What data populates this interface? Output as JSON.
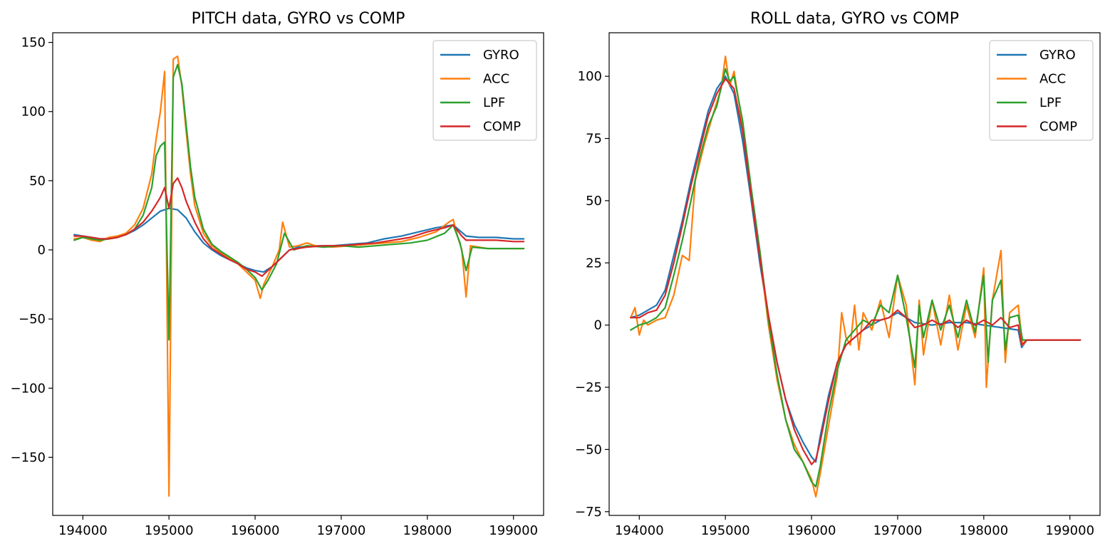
{
  "chart_data": [
    {
      "type": "line",
      "title": "PITCH data, GYRO vs COMP",
      "xlabel": "",
      "ylabel": "",
      "xlim": [
        193650,
        199350
      ],
      "ylim": [
        -192,
        157
      ],
      "xticks": [
        194000,
        195000,
        196000,
        197000,
        198000,
        199000
      ],
      "yticks": [
        150,
        100,
        50,
        0,
        -50,
        -100,
        -150
      ],
      "grid": false,
      "legend_position": "top-right",
      "series": [
        {
          "name": "GYRO",
          "color": "#1f77b4",
          "x": [
            193900,
            194000,
            194100,
            194200,
            194300,
            194400,
            194500,
            194600,
            194700,
            194800,
            194900,
            195000,
            195100,
            195200,
            195300,
            195400,
            195500,
            195600,
            195700,
            195800,
            195900,
            196000,
            196100,
            196200,
            196300,
            196400,
            196500,
            196700,
            196900,
            197100,
            197300,
            197500,
            197700,
            197900,
            198100,
            198300,
            198450,
            198600,
            198800,
            199000,
            199120
          ],
          "y": [
            11,
            10,
            9,
            8,
            8,
            9,
            11,
            14,
            18,
            23,
            28,
            30,
            29,
            23,
            13,
            5,
            0,
            -4,
            -7,
            -10,
            -13,
            -15,
            -16,
            -12,
            -6,
            0,
            2,
            3,
            3,
            4,
            5,
            8,
            10,
            13,
            16,
            18,
            10,
            9,
            9,
            8,
            8
          ]
        },
        {
          "name": "ACC",
          "color": "#ff7f0e",
          "x": [
            193900,
            194000,
            194100,
            194200,
            194300,
            194400,
            194500,
            194600,
            194700,
            194800,
            194850,
            194900,
            194950,
            195000,
            195050,
            195100,
            195150,
            195200,
            195250,
            195300,
            195400,
            195500,
            195600,
            195700,
            195800,
            195900,
            196000,
            196060,
            196100,
            196200,
            196280,
            196320,
            196400,
            196500,
            196600,
            196700,
            196900,
            197100,
            197300,
            197500,
            197700,
            197900,
            198100,
            198250,
            198300,
            198350,
            198400,
            198450,
            198500,
            198700,
            198900,
            199120
          ],
          "y": [
            8,
            9,
            7,
            6,
            9,
            10,
            12,
            18,
            30,
            55,
            80,
            100,
            129,
            -178,
            138,
            140,
            118,
            85,
            55,
            32,
            12,
            3,
            -2,
            -6,
            -10,
            -16,
            -22,
            -35,
            -25,
            -12,
            0,
            20,
            2,
            3,
            5,
            3,
            2,
            3,
            4,
            5,
            6,
            9,
            13,
            20,
            22,
            10,
            0,
            -34,
            3,
            1,
            1,
            1
          ]
        },
        {
          "name": "LPF",
          "color": "#2ca02c",
          "x": [
            193900,
            194000,
            194100,
            194200,
            194300,
            194400,
            194500,
            194600,
            194700,
            194800,
            194850,
            194900,
            194950,
            195000,
            195050,
            195100,
            195150,
            195200,
            195250,
            195300,
            195400,
            195500,
            195600,
            195700,
            195800,
            195900,
            196000,
            196080,
            196150,
            196250,
            196340,
            196450,
            196600,
            196800,
            197000,
            197200,
            197400,
            197600,
            197800,
            198000,
            198200,
            198300,
            198380,
            198450,
            198520,
            198700,
            198900,
            199120
          ],
          "y": [
            7,
            9,
            8,
            7,
            8,
            9,
            11,
            15,
            25,
            45,
            68,
            75,
            78,
            -65,
            125,
            134,
            120,
            90,
            60,
            38,
            15,
            4,
            -1,
            -5,
            -9,
            -14,
            -20,
            -29,
            -22,
            -10,
            12,
            0,
            3,
            2,
            3,
            2,
            3,
            4,
            5,
            7,
            12,
            18,
            5,
            -15,
            2,
            1,
            1,
            1
          ]
        },
        {
          "name": "COMP",
          "color": "#d62728",
          "x": [
            193900,
            194000,
            194100,
            194200,
            194300,
            194400,
            194500,
            194600,
            194700,
            194800,
            194850,
            194900,
            194950,
            195000,
            195050,
            195100,
            195150,
            195200,
            195300,
            195400,
            195500,
            195600,
            195700,
            195800,
            195900,
            196000,
            196080,
            196200,
            196300,
            196400,
            196600,
            196800,
            197000,
            197200,
            197400,
            197600,
            197800,
            198000,
            198200,
            198300,
            198400,
            198450,
            198600,
            198800,
            199000,
            199120
          ],
          "y": [
            10,
            10,
            9,
            8,
            8,
            9,
            11,
            15,
            20,
            28,
            33,
            38,
            45,
            30,
            48,
            52,
            45,
            35,
            20,
            8,
            1,
            -3,
            -7,
            -10,
            -14,
            -16,
            -19,
            -12,
            -6,
            0,
            2,
            3,
            3,
            4,
            5,
            7,
            9,
            13,
            16,
            18,
            10,
            7,
            7,
            7,
            6,
            6
          ]
        }
      ]
    },
    {
      "type": "line",
      "title": "ROLL data, GYRO vs COMP",
      "xlabel": "",
      "ylabel": "",
      "xlim": [
        193650,
        199350
      ],
      "ylim": [
        -76.5,
        117.5
      ],
      "xticks": [
        194000,
        195000,
        196000,
        197000,
        198000,
        199000
      ],
      "yticks": [
        100,
        75,
        50,
        25,
        0,
        -25,
        -50,
        -75
      ],
      "grid": false,
      "legend_position": "top-right",
      "series": [
        {
          "name": "GYRO",
          "color": "#1f77b4",
          "x": [
            193900,
            194000,
            194100,
            194200,
            194300,
            194400,
            194500,
            194600,
            194700,
            194800,
            194900,
            195000,
            195100,
            195200,
            195300,
            195400,
            195500,
            195600,
            195700,
            195800,
            195900,
            196000,
            196050,
            196100,
            196200,
            196300,
            196400,
            196500,
            196600,
            196700,
            196800,
            196900,
            197000,
            197200,
            197400,
            197600,
            197800,
            198000,
            198200,
            198400,
            198440,
            198500,
            198700,
            198900,
            199120
          ],
          "y": [
            3,
            4,
            6,
            8,
            14,
            28,
            42,
            58,
            72,
            86,
            95,
            100,
            93,
            74,
            50,
            25,
            3,
            -15,
            -30,
            -40,
            -47,
            -53,
            -55,
            -45,
            -28,
            -15,
            -8,
            -5,
            -2,
            0,
            2,
            3,
            5,
            1,
            0,
            1,
            1,
            0,
            -1,
            -2,
            -9,
            -6,
            -6,
            -6,
            -6
          ]
        },
        {
          "name": "ACC",
          "color": "#ff7f0e",
          "x": [
            193900,
            193950,
            194000,
            194050,
            194100,
            194200,
            194300,
            194400,
            194500,
            194580,
            194650,
            194750,
            194850,
            194950,
            195000,
            195050,
            195100,
            195200,
            195300,
            195400,
            195500,
            195600,
            195700,
            195800,
            195900,
            196000,
            196050,
            196100,
            196200,
            196300,
            196350,
            196400,
            196450,
            196500,
            196550,
            196600,
            196700,
            196800,
            196900,
            197000,
            197100,
            197200,
            197250,
            197300,
            197400,
            197500,
            197600,
            197700,
            197800,
            197900,
            198000,
            198030,
            198100,
            198200,
            198250,
            198300,
            198400,
            198450,
            198500,
            198700,
            198900,
            199120
          ],
          "y": [
            3,
            7,
            -4,
            2,
            0,
            2,
            3,
            12,
            28,
            26,
            58,
            72,
            84,
            95,
            108,
            96,
            102,
            80,
            52,
            28,
            0,
            -22,
            -38,
            -48,
            -55,
            -62,
            -69,
            -60,
            -40,
            -20,
            5,
            -5,
            -8,
            8,
            -10,
            5,
            -2,
            10,
            -5,
            20,
            8,
            -24,
            10,
            -12,
            10,
            -8,
            12,
            -10,
            8,
            -5,
            23,
            -25,
            10,
            30,
            -15,
            5,
            8,
            -8,
            -6,
            -6,
            -6,
            -6
          ]
        },
        {
          "name": "LPF",
          "color": "#2ca02c",
          "x": [
            193900,
            194000,
            194100,
            194200,
            194300,
            194400,
            194500,
            194600,
            194700,
            194800,
            194900,
            195000,
            195050,
            195100,
            195200,
            195300,
            195400,
            195500,
            195600,
            195700,
            195800,
            195900,
            196000,
            196050,
            196100,
            196200,
            196300,
            196400,
            196500,
            196600,
            196700,
            196800,
            196900,
            197000,
            197100,
            197200,
            197250,
            197300,
            197400,
            197500,
            197600,
            197700,
            197800,
            197900,
            198000,
            198050,
            198100,
            198200,
            198250,
            198300,
            198400,
            198450,
            198500,
            198700,
            198900,
            199120
          ],
          "y": [
            -2,
            0,
            1,
            3,
            7,
            20,
            34,
            50,
            67,
            80,
            88,
            103,
            98,
            100,
            82,
            55,
            30,
            2,
            -20,
            -38,
            -50,
            -55,
            -63,
            -65,
            -57,
            -35,
            -18,
            -6,
            -2,
            2,
            0,
            8,
            5,
            20,
            3,
            -17,
            8,
            -5,
            10,
            -2,
            8,
            -5,
            10,
            -3,
            20,
            -15,
            10,
            18,
            -10,
            3,
            4,
            -6,
            -6,
            -6,
            -6,
            -6
          ]
        },
        {
          "name": "COMP",
          "color": "#d62728",
          "x": [
            193900,
            194000,
            194100,
            194200,
            194300,
            194400,
            194500,
            194600,
            194700,
            194800,
            194900,
            195000,
            195100,
            195200,
            195300,
            195400,
            195500,
            195600,
            195700,
            195800,
            195900,
            196000,
            196050,
            196100,
            196200,
            196300,
            196400,
            196500,
            196600,
            196700,
            196800,
            196900,
            197000,
            197100,
            197200,
            197300,
            197400,
            197500,
            197600,
            197700,
            197800,
            197900,
            198000,
            198100,
            198200,
            198300,
            198400,
            198440,
            198500,
            198700,
            198900,
            199120
          ],
          "y": [
            3,
            3,
            5,
            6,
            12,
            25,
            40,
            56,
            70,
            84,
            93,
            99,
            95,
            78,
            52,
            27,
            4,
            -15,
            -30,
            -42,
            -50,
            -56,
            -54,
            -47,
            -30,
            -15,
            -8,
            -5,
            -2,
            2,
            2,
            3,
            6,
            3,
            -1,
            0,
            2,
            0,
            2,
            -1,
            2,
            0,
            2,
            0,
            3,
            -1,
            0,
            -8,
            -6,
            -6,
            -6,
            -6
          ]
        }
      ]
    }
  ]
}
